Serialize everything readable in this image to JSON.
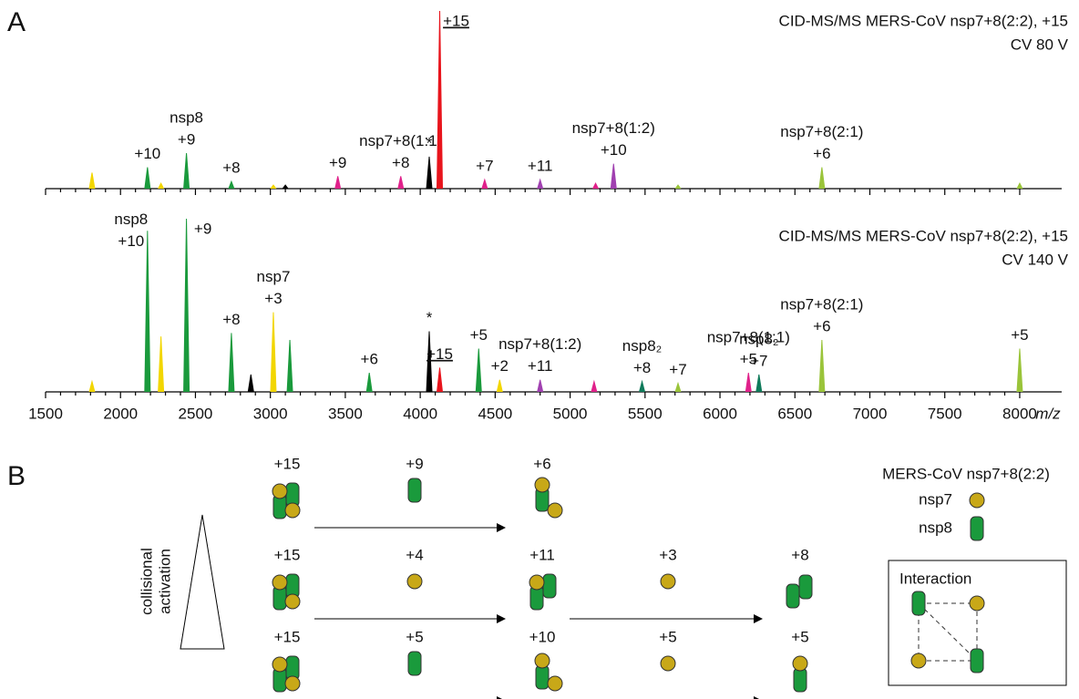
{
  "chart_data": [
    {
      "type": "spectrum",
      "title": "CID-MS/MS MERS-CoV nsp7+8(2:2), +15",
      "subtitle": "CV 80 V",
      "panel": "A",
      "x": [
        1810,
        2180,
        2270,
        2440,
        2740,
        3020,
        3100,
        3450,
        3870,
        4060,
        4130,
        4430,
        4800,
        5170,
        5290,
        5720,
        6680,
        8000
      ],
      "values": [
        9,
        12,
        3,
        20,
        4,
        2,
        2,
        7,
        7,
        18,
        100,
        5,
        5,
        3,
        14,
        2,
        12,
        3
      ],
      "colors": [
        "#f2d600",
        "#1a9a3c",
        "#f2d600",
        "#1a9a3c",
        "#1a9a3c",
        "#f2d600",
        "#000000",
        "#e0218a",
        "#e0218a",
        "#000000",
        "#e8141c",
        "#e0218a",
        "#a040b0",
        "#e0218a",
        "#a040b0",
        "#9ac43a",
        "#9ac43a",
        "#9ac43a"
      ],
      "labels": [
        null,
        "+10",
        null,
        "+9",
        "+8",
        null,
        null,
        "+9",
        "+8",
        "*",
        "+15",
        "+7",
        "+11",
        null,
        "+10",
        null,
        "+6",
        null
      ],
      "species": [
        null,
        null,
        null,
        "nsp8",
        null,
        null,
        null,
        null,
        "nsp7+8(1:1)",
        null,
        null,
        null,
        null,
        null,
        "nsp7+8(1:2)",
        null,
        "nsp7+8(2:1)",
        null
      ],
      "xlim": [
        1500,
        8280
      ],
      "ylim": [
        0,
        100
      ],
      "xticks": [
        1500,
        2000,
        2500,
        3000,
        3500,
        4000,
        4500,
        5000,
        5500,
        6000,
        6500,
        7000,
        7500,
        8000
      ],
      "tick_labels": false
    },
    {
      "type": "spectrum",
      "title": "CID-MS/MS MERS-CoV nsp7+8(2:2), +15",
      "subtitle": "CV 140 V",
      "x": [
        1810,
        2180,
        2270,
        2440,
        2740,
        2870,
        3020,
        3130,
        3660,
        4060,
        4130,
        4390,
        4530,
        4800,
        5160,
        5480,
        5720,
        6190,
        6260,
        6680,
        8000
      ],
      "values": [
        6,
        93,
        32,
        100,
        34,
        10,
        46,
        30,
        11,
        35,
        14,
        25,
        7,
        7,
        6,
        6,
        5,
        11,
        10,
        30,
        25
      ],
      "colors": [
        "#f2d600",
        "#1a9a3c",
        "#f2d600",
        "#1a9a3c",
        "#1a9a3c",
        "#000000",
        "#f2d600",
        "#1a9a3c",
        "#1a9a3c",
        "#000000",
        "#e8141c",
        "#1a9a3c",
        "#f2d600",
        "#a040b0",
        "#e0218a",
        "#0f7a5a",
        "#9ac43a",
        "#e0218a",
        "#0f7a5a",
        "#9ac43a",
        "#9ac43a"
      ],
      "labels": [
        null,
        "+10",
        null,
        "+9",
        "+8",
        null,
        "+3",
        null,
        "+6",
        "*",
        "+15",
        "+5",
        "+2",
        "+11",
        null,
        "+8",
        "+7",
        "+5",
        "+7",
        "+6",
        "+5"
      ],
      "species": [
        null,
        "nsp8",
        null,
        null,
        null,
        null,
        "nsp7",
        null,
        null,
        null,
        null,
        null,
        null,
        "nsp7+8(1:2)",
        null,
        "nsp8₂",
        null,
        "nsp7+8(1:1)",
        "nsp8₂",
        "nsp7+8(2:1)",
        null
      ],
      "xlim": [
        1500,
        8280
      ],
      "ylim": [
        0,
        100
      ],
      "xticks": [
        1500,
        2000,
        2500,
        3000,
        3500,
        4000,
        4500,
        5000,
        5500,
        6000,
        6500,
        7000,
        7500,
        8000
      ],
      "tick_labels": true,
      "xlabel": "m/z"
    }
  ],
  "panel_b": {
    "panel": "B",
    "axis_label": [
      "collisional",
      "activation"
    ],
    "rows": [
      {
        "precursor": "+15",
        "loss": "+9",
        "product": "+6"
      },
      {
        "precursor": "+15",
        "loss": "+4",
        "product": "+11",
        "loss2": "+3",
        "product2": "+8"
      },
      {
        "precursor": "+15",
        "loss": "+5",
        "product": "+10",
        "loss2": "+5",
        "product2": "+5"
      }
    ],
    "legend_title": "MERS-CoV nsp7+8(2:2)",
    "legend": [
      "nsp7",
      "nsp8"
    ],
    "box_title": "Interaction"
  }
}
